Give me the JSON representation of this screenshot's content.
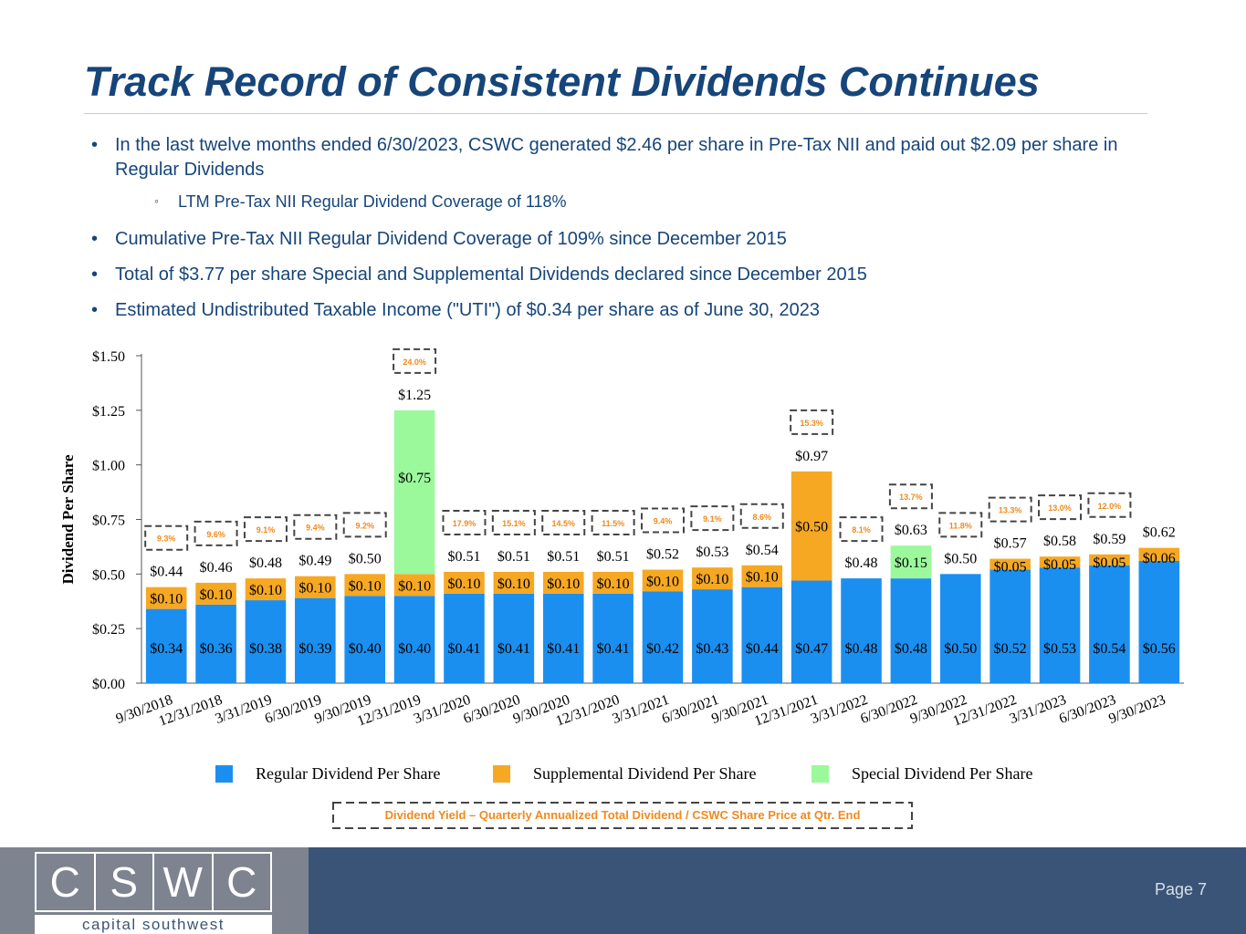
{
  "title": "Track Record of Consistent Dividends Continues",
  "bullets": [
    "In the last twelve months ended 6/30/2023, CSWC generated $2.46 per share in Pre-Tax NII and paid out $2.09 per share in Regular Dividends",
    "LTM Pre-Tax NII Regular Dividend Coverage of 118%",
    "Cumulative Pre-Tax NII Regular Dividend Coverage of 109% since December 2015",
    "Total of $3.77 per share Special and Supplemental Dividends declared since December 2015",
    "Estimated Undistributed Taxable Income (\"UTI\") of $0.34 per share as of June 30, 2023"
  ],
  "bullet_marker": "•",
  "sub_bullet_marker": "◦",
  "colors": {
    "title": "#16457a",
    "regular": "#1b8ff0",
    "supplemental": "#f6a823",
    "special": "#9bf99b",
    "yield_text": "#f08a1c",
    "footer": "#3a5478",
    "logo_panel": "#7d848f"
  },
  "chart_data": {
    "type": "bar",
    "stacked": true,
    "ylabel": "Dividend Per Share",
    "ylim": [
      0,
      1.5
    ],
    "yticks": [
      "$0.00",
      "$0.25",
      "$0.50",
      "$0.75",
      "$1.00",
      "$1.25",
      "$1.50"
    ],
    "categories": [
      "9/30/2018",
      "12/31/2018",
      "3/31/2019",
      "6/30/2019",
      "9/30/2019",
      "12/31/2019",
      "3/31/2020",
      "6/30/2020",
      "9/30/2020",
      "12/31/2020",
      "3/31/2021",
      "6/30/2021",
      "9/30/2021",
      "12/31/2021",
      "3/31/2022",
      "6/30/2022",
      "9/30/2022",
      "12/31/2022",
      "3/31/2023",
      "6/30/2023",
      "9/30/2023"
    ],
    "series": [
      {
        "name": "Regular Dividend Per Share",
        "values": [
          0.34,
          0.36,
          0.38,
          0.39,
          0.4,
          0.4,
          0.41,
          0.41,
          0.41,
          0.41,
          0.42,
          0.43,
          0.44,
          0.47,
          0.48,
          0.48,
          0.5,
          0.52,
          0.53,
          0.54,
          0.56
        ]
      },
      {
        "name": "Supplemental Dividend Per Share",
        "values": [
          0.1,
          0.1,
          0.1,
          0.1,
          0.1,
          0.1,
          0.1,
          0.1,
          0.1,
          0.1,
          0.1,
          0.1,
          0.1,
          0.5,
          0,
          0,
          0,
          0.05,
          0.05,
          0.05,
          0.06
        ]
      },
      {
        "name": "Special Dividend Per Share",
        "values": [
          0,
          0,
          0,
          0,
          0,
          0.75,
          0,
          0,
          0,
          0,
          0,
          0,
          0,
          0,
          0,
          0.15,
          0,
          0,
          0,
          0,
          0
        ]
      }
    ],
    "regular_labels": [
      "$0.34",
      "$0.36",
      "$0.38",
      "$0.39",
      "$0.40",
      "$0.40",
      "$0.41",
      "$0.41",
      "$0.41",
      "$0.41",
      "$0.42",
      "$0.43",
      "$0.44",
      "$0.47",
      "$0.48",
      "$0.48",
      "$0.50",
      "$0.52",
      "$0.53",
      "$0.54",
      "$0.56"
    ],
    "supplemental_labels": [
      "$0.10",
      "$0.10",
      "$0.10",
      "$0.10",
      "$0.10",
      "$0.10",
      "$0.10",
      "$0.10",
      "$0.10",
      "$0.10",
      "$0.10",
      "$0.10",
      "$0.10",
      "$0.50",
      "",
      "",
      "",
      "$0.05",
      "$0.05",
      "$0.05",
      "$0.06"
    ],
    "special_labels": [
      "",
      "",
      "",
      "",
      "",
      "$0.75",
      "",
      "",
      "",
      "",
      "",
      "",
      "",
      "",
      "",
      "$0.15",
      "",
      "",
      "",
      "",
      ""
    ],
    "total_labels": [
      "$0.44",
      "$0.46",
      "$0.48",
      "$0.49",
      "$0.50",
      "$1.25",
      "$0.51",
      "$0.51",
      "$0.51",
      "$0.51",
      "$0.52",
      "$0.53",
      "$0.54",
      "$0.97",
      "$0.48",
      "$0.63",
      "$0.50",
      "$0.57",
      "$0.58",
      "$0.59",
      "$0.62"
    ],
    "yield_labels": [
      "9.3%",
      "9.6%",
      "9.1%",
      "9.4%",
      "9.2%",
      "24.0%",
      "17.9%",
      "15.1%",
      "14.5%",
      "11.5%",
      "9.4%",
      "9.1%",
      "8.6%",
      "15.3%",
      "8.1%",
      "13.7%",
      "11.8%",
      "13.3%",
      "13.0%",
      "12.0%",
      ""
    ],
    "yield_note": "Dividend Yield – Quarterly Annualized Total Dividend / CSWC Share Price at Qtr. End",
    "legend_position": "bottom"
  },
  "footer": {
    "logo_letters": [
      "C",
      "S",
      "W",
      "C"
    ],
    "logo_subtitle": "capital southwest",
    "page_label": "Page 7"
  }
}
